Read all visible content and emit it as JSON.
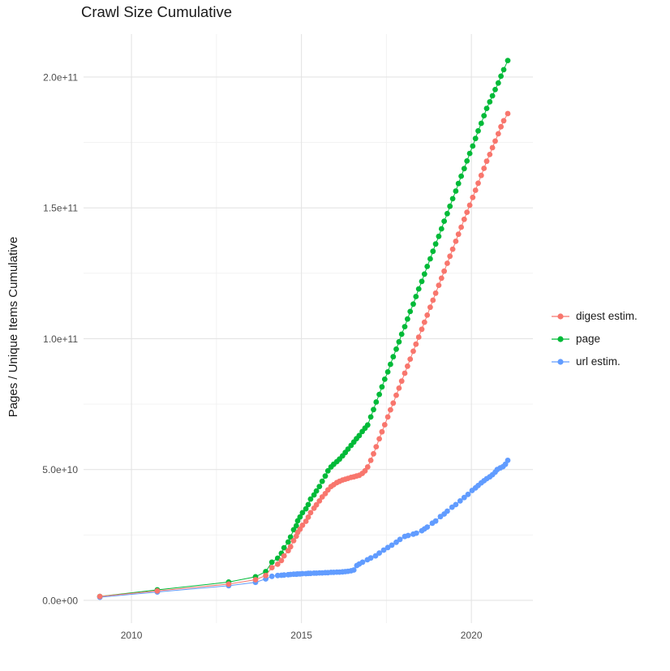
{
  "title": "Crawl Size Cumulative",
  "y_axis_title": "Pages / Unique Items Cumulative",
  "x_axis_title": "",
  "chart_data": {
    "type": "line",
    "title": "Crawl Size Cumulative",
    "xlabel": "",
    "ylabel": "Pages / Unique Items Cumulative",
    "legend_position": "right",
    "background": "#ffffff",
    "grid": {
      "major": true,
      "minor": true,
      "major_color": "#e4e4e4",
      "minor_color": "#f1f1f1"
    },
    "tick_label_color": "#4d4d4d",
    "xlim": [
      2008.59,
      2021.81
    ],
    "ylim": [
      -8700000000.0,
      216400000000.0
    ],
    "x_ticks": [
      {
        "v": 2010,
        "label": "2010"
      },
      {
        "v": 2015,
        "label": "2015"
      },
      {
        "v": 2020,
        "label": "2020"
      }
    ],
    "x_minor": [
      2012.5,
      2017.5
    ],
    "y_ticks": [
      {
        "v": 0,
        "label": "0.0e+00"
      },
      {
        "v": 50000000000.0,
        "label": "5.0e+10"
      },
      {
        "v": 100000000000.0,
        "label": "1.0e+11"
      },
      {
        "v": 150000000000.0,
        "label": "1.5e+11"
      },
      {
        "v": 200000000000.0,
        "label": "2.0e+11"
      }
    ],
    "y_minor": [
      25000000000.0,
      75000000000.0,
      125000000000.0,
      175000000000.0
    ],
    "series": [
      {
        "name": "digest estim.",
        "color": "#F8766D",
        "points": [
          [
            2009.07,
            1500000000.0
          ],
          [
            2010.76,
            3600000000.0
          ],
          [
            2012.86,
            6200000000.0
          ],
          [
            2013.65,
            7900000000.0
          ],
          [
            2013.95,
            9500000000.0
          ],
          [
            2014.13,
            12500000000.0
          ],
          [
            2014.3,
            13800000000.0
          ],
          [
            2014.41,
            15200000000.0
          ],
          [
            2014.49,
            17000000000.0
          ],
          [
            2014.61,
            19000000000.0
          ],
          [
            2014.68,
            20500000000.0
          ],
          [
            2014.77,
            22800000000.0
          ],
          [
            2014.85,
            24500000000.0
          ],
          [
            2014.89,
            26000000000.0
          ],
          [
            2014.96,
            27200000000.0
          ],
          [
            2015.03,
            28700000000.0
          ],
          [
            2015.13,
            30200000000.0
          ],
          [
            2015.2,
            31800000000.0
          ],
          [
            2015.27,
            33500000000.0
          ],
          [
            2015.37,
            35200000000.0
          ],
          [
            2015.44,
            36500000000.0
          ],
          [
            2015.53,
            38000000000.0
          ],
          [
            2015.61,
            39500000000.0
          ],
          [
            2015.7,
            40800000000.0
          ],
          [
            2015.78,
            42200000000.0
          ],
          [
            2015.87,
            43500000000.0
          ],
          [
            2015.95,
            44200000000.0
          ],
          [
            2016.04,
            45000000000.0
          ],
          [
            2016.12,
            45500000000.0
          ],
          [
            2016.21,
            46000000000.0
          ],
          [
            2016.29,
            46300000000.0
          ],
          [
            2016.37,
            46600000000.0
          ],
          [
            2016.46,
            47000000000.0
          ],
          [
            2016.54,
            47200000000.0
          ],
          [
            2016.62,
            47500000000.0
          ],
          [
            2016.7,
            47800000000.0
          ],
          [
            2016.79,
            48500000000.0
          ],
          [
            2016.87,
            49500000000.0
          ],
          [
            2016.95,
            51000000000.0
          ],
          [
            2017.04,
            53500000000.0
          ],
          [
            2017.12,
            56000000000.0
          ],
          [
            2017.2,
            58700000000.0
          ],
          [
            2017.29,
            61700000000.0
          ],
          [
            2017.37,
            64400000000.0
          ],
          [
            2017.45,
            67100000000.0
          ],
          [
            2017.54,
            70100000000.0
          ],
          [
            2017.62,
            72800000000.0
          ],
          [
            2017.7,
            75400000000.0
          ],
          [
            2017.79,
            78400000000.0
          ],
          [
            2017.87,
            81100000000.0
          ],
          [
            2017.95,
            83800000000.0
          ],
          [
            2018.04,
            86800000000.0
          ],
          [
            2018.12,
            89500000000.0
          ],
          [
            2018.2,
            92200000000.0
          ],
          [
            2018.29,
            95200000000.0
          ],
          [
            2018.37,
            97900000000.0
          ],
          [
            2018.45,
            100600000000.0
          ],
          [
            2018.54,
            103600000000.0
          ],
          [
            2018.62,
            106300000000.0
          ],
          [
            2018.7,
            109000000000.0
          ],
          [
            2018.79,
            112000000000.0
          ],
          [
            2018.87,
            114700000000.0
          ],
          [
            2018.95,
            117400000000.0
          ],
          [
            2019.04,
            120400000000.0
          ],
          [
            2019.12,
            123100000000.0
          ],
          [
            2019.2,
            125800000000.0
          ],
          [
            2019.29,
            128800000000.0
          ],
          [
            2019.37,
            131500000000.0
          ],
          [
            2019.45,
            134200000000.0
          ],
          [
            2019.54,
            137200000000.0
          ],
          [
            2019.62,
            139900000000.0
          ],
          [
            2019.7,
            142600000000.0
          ],
          [
            2019.79,
            145600000000.0
          ],
          [
            2019.87,
            148300000000.0
          ],
          [
            2019.95,
            151000000000.0
          ],
          [
            2020.04,
            154000000000.0
          ],
          [
            2020.12,
            156700000000.0
          ],
          [
            2020.2,
            159400000000.0
          ],
          [
            2020.29,
            162400000000.0
          ],
          [
            2020.37,
            165100000000.0
          ],
          [
            2020.45,
            167800000000.0
          ],
          [
            2020.54,
            170400000000.0
          ],
          [
            2020.62,
            173000000000.0
          ],
          [
            2020.7,
            175500000000.0
          ],
          [
            2020.79,
            178300000000.0
          ],
          [
            2020.87,
            181000000000.0
          ],
          [
            2020.95,
            183300000000.0
          ],
          [
            2021.07,
            186000000000.0
          ]
        ]
      },
      {
        "name": "page",
        "color": "#00BA38",
        "points": [
          [
            2009.07,
            1500000000.0
          ],
          [
            2010.76,
            4000000000.0
          ],
          [
            2012.86,
            7000000000.0
          ],
          [
            2013.65,
            9000000000.0
          ],
          [
            2013.95,
            11000000000.0
          ],
          [
            2014.13,
            14600000000.0
          ],
          [
            2014.3,
            16100000000.0
          ],
          [
            2014.41,
            18000000000.0
          ],
          [
            2014.49,
            20100000000.0
          ],
          [
            2014.61,
            22300000000.0
          ],
          [
            2014.68,
            24200000000.0
          ],
          [
            2014.77,
            27000000000.0
          ],
          [
            2014.85,
            28500000000.0
          ],
          [
            2014.89,
            30400000000.0
          ],
          [
            2014.96,
            31900000000.0
          ],
          [
            2015.03,
            33500000000.0
          ],
          [
            2015.13,
            35000000000.0
          ],
          [
            2015.2,
            36600000000.0
          ],
          [
            2015.27,
            38700000000.0
          ],
          [
            2015.37,
            40300000000.0
          ],
          [
            2015.44,
            41800000000.0
          ],
          [
            2015.53,
            43500000000.0
          ],
          [
            2015.61,
            45500000000.0
          ],
          [
            2015.7,
            47500000000.0
          ],
          [
            2015.78,
            49500000000.0
          ],
          [
            2015.87,
            51000000000.0
          ],
          [
            2015.95,
            52000000000.0
          ],
          [
            2016.04,
            53000000000.0
          ],
          [
            2016.12,
            54000000000.0
          ],
          [
            2016.21,
            55200000000.0
          ],
          [
            2016.29,
            56500000000.0
          ],
          [
            2016.37,
            57800000000.0
          ],
          [
            2016.46,
            59200000000.0
          ],
          [
            2016.54,
            60500000000.0
          ],
          [
            2016.62,
            61800000000.0
          ],
          [
            2016.7,
            63000000000.0
          ],
          [
            2016.79,
            64500000000.0
          ],
          [
            2016.87,
            65800000000.0
          ],
          [
            2016.95,
            67000000000.0
          ],
          [
            2017.04,
            70100000000.0
          ],
          [
            2017.12,
            72900000000.0
          ],
          [
            2017.2,
            75800000000.0
          ],
          [
            2017.29,
            78700000000.0
          ],
          [
            2017.37,
            81600000000.0
          ],
          [
            2017.45,
            84500000000.0
          ],
          [
            2017.54,
            87300000000.0
          ],
          [
            2017.62,
            90200000000.0
          ],
          [
            2017.7,
            93100000000.0
          ],
          [
            2017.79,
            96000000000.0
          ],
          [
            2017.87,
            98800000000.0
          ],
          [
            2017.95,
            101700000000.0
          ],
          [
            2018.04,
            104600000000.0
          ],
          [
            2018.12,
            107500000000.0
          ],
          [
            2018.2,
            110400000000.0
          ],
          [
            2018.29,
            113200000000.0
          ],
          [
            2018.37,
            116100000000.0
          ],
          [
            2018.45,
            119000000000.0
          ],
          [
            2018.54,
            121900000000.0
          ],
          [
            2018.62,
            124700000000.0
          ],
          [
            2018.7,
            127600000000.0
          ],
          [
            2018.79,
            130500000000.0
          ],
          [
            2018.87,
            133400000000.0
          ],
          [
            2018.95,
            136200000000.0
          ],
          [
            2019.04,
            139100000000.0
          ],
          [
            2019.12,
            142000000000.0
          ],
          [
            2019.2,
            144900000000.0
          ],
          [
            2019.29,
            147800000000.0
          ],
          [
            2019.37,
            150600000000.0
          ],
          [
            2019.45,
            153500000000.0
          ],
          [
            2019.54,
            156400000000.0
          ],
          [
            2019.62,
            159300000000.0
          ],
          [
            2019.7,
            162100000000.0
          ],
          [
            2019.79,
            165000000000.0
          ],
          [
            2019.87,
            167900000000.0
          ],
          [
            2019.95,
            170800000000.0
          ],
          [
            2020.04,
            173600000000.0
          ],
          [
            2020.12,
            176500000000.0
          ],
          [
            2020.2,
            179400000000.0
          ],
          [
            2020.29,
            182300000000.0
          ],
          [
            2020.37,
            185200000000.0
          ],
          [
            2020.45,
            188000000000.0
          ],
          [
            2020.54,
            190500000000.0
          ],
          [
            2020.62,
            192800000000.0
          ],
          [
            2020.7,
            195200000000.0
          ],
          [
            2020.79,
            197700000000.0
          ],
          [
            2020.87,
            200300000000.0
          ],
          [
            2020.95,
            202800000000.0
          ],
          [
            2021.07,
            206300000000.0
          ]
        ]
      },
      {
        "name": "url estim.",
        "color": "#619CFF",
        "points": [
          [
            2009.07,
            1200000000.0
          ],
          [
            2010.76,
            3200000000.0
          ],
          [
            2012.86,
            5600000000.0
          ],
          [
            2013.65,
            6900000000.0
          ],
          [
            2013.95,
            8200000000.0
          ],
          [
            2014.13,
            9200000000.0
          ],
          [
            2014.3,
            9500000000.0
          ],
          [
            2014.41,
            9600000000.0
          ],
          [
            2014.49,
            9700000000.0
          ],
          [
            2014.61,
            9800000000.0
          ],
          [
            2014.68,
            9900000000.0
          ],
          [
            2014.77,
            10000000000.0
          ],
          [
            2014.85,
            10000000000.0
          ],
          [
            2014.89,
            10100000000.0
          ],
          [
            2014.96,
            10100000000.0
          ],
          [
            2015.03,
            10200000000.0
          ],
          [
            2015.13,
            10200000000.0
          ],
          [
            2015.2,
            10300000000.0
          ],
          [
            2015.27,
            10300000000.0
          ],
          [
            2015.37,
            10400000000.0
          ],
          [
            2015.44,
            10400000000.0
          ],
          [
            2015.53,
            10500000000.0
          ],
          [
            2015.61,
            10500000000.0
          ],
          [
            2015.7,
            10600000000.0
          ],
          [
            2015.78,
            10600000000.0
          ],
          [
            2015.87,
            10700000000.0
          ],
          [
            2015.95,
            10700000000.0
          ],
          [
            2016.04,
            10800000000.0
          ],
          [
            2016.12,
            10800000000.0
          ],
          [
            2016.21,
            10900000000.0
          ],
          [
            2016.29,
            11000000000.0
          ],
          [
            2016.37,
            11100000000.0
          ],
          [
            2016.46,
            11300000000.0
          ],
          [
            2016.54,
            11600000000.0
          ],
          [
            2016.63,
            13300000000.0
          ],
          [
            2016.7,
            13900000000.0
          ],
          [
            2016.8,
            14600000000.0
          ],
          [
            2016.94,
            15500000000.0
          ],
          [
            2017.04,
            16200000000.0
          ],
          [
            2017.18,
            17000000000.0
          ],
          [
            2017.29,
            18100000000.0
          ],
          [
            2017.42,
            19200000000.0
          ],
          [
            2017.54,
            20200000000.0
          ],
          [
            2017.66,
            21100000000.0
          ],
          [
            2017.79,
            22200000000.0
          ],
          [
            2017.9,
            23300000000.0
          ],
          [
            2018.04,
            24400000000.0
          ],
          [
            2018.14,
            24800000000.0
          ],
          [
            2018.29,
            25300000000.0
          ],
          [
            2018.38,
            25700000000.0
          ],
          [
            2018.54,
            26600000000.0
          ],
          [
            2018.62,
            27300000000.0
          ],
          [
            2018.7,
            28000000000.0
          ],
          [
            2018.85,
            29500000000.0
          ],
          [
            2018.95,
            30300000000.0
          ],
          [
            2019.09,
            32000000000.0
          ],
          [
            2019.2,
            33000000000.0
          ],
          [
            2019.29,
            34100000000.0
          ],
          [
            2019.43,
            35600000000.0
          ],
          [
            2019.54,
            36600000000.0
          ],
          [
            2019.67,
            38000000000.0
          ],
          [
            2019.79,
            39300000000.0
          ],
          [
            2019.9,
            40500000000.0
          ],
          [
            2020.02,
            42000000000.0
          ],
          [
            2020.12,
            43000000000.0
          ],
          [
            2020.2,
            43900000000.0
          ],
          [
            2020.29,
            44900000000.0
          ],
          [
            2020.37,
            45700000000.0
          ],
          [
            2020.45,
            46500000000.0
          ],
          [
            2020.54,
            47200000000.0
          ],
          [
            2020.62,
            48000000000.0
          ],
          [
            2020.7,
            49000000000.0
          ],
          [
            2020.76,
            50000000000.0
          ],
          [
            2020.85,
            50600000000.0
          ],
          [
            2020.93,
            51100000000.0
          ],
          [
            2021.0,
            52000000000.0
          ],
          [
            2021.07,
            53500000000.0
          ]
        ]
      }
    ]
  }
}
